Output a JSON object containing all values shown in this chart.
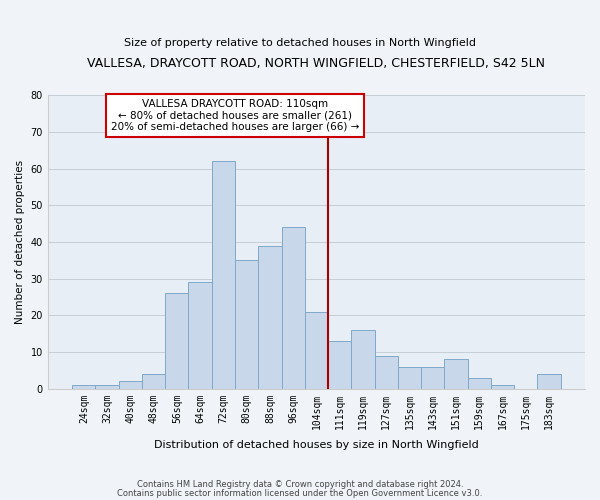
{
  "title": "VALLESA, DRAYCOTT ROAD, NORTH WINGFIELD, CHESTERFIELD, S42 5LN",
  "subtitle": "Size of property relative to detached houses in North Wingfield",
  "xlabel": "Distribution of detached houses by size in North Wingfield",
  "ylabel": "Number of detached properties",
  "bar_labels": [
    "24sqm",
    "32sqm",
    "40sqm",
    "48sqm",
    "56sqm",
    "64sqm",
    "72sqm",
    "80sqm",
    "88sqm",
    "96sqm",
    "104sqm",
    "111sqm",
    "119sqm",
    "127sqm",
    "135sqm",
    "143sqm",
    "151sqm",
    "159sqm",
    "167sqm",
    "175sqm",
    "183sqm"
  ],
  "bar_values": [
    1,
    1,
    2,
    4,
    26,
    29,
    62,
    35,
    39,
    44,
    21,
    13,
    16,
    9,
    6,
    6,
    8,
    3,
    1,
    0,
    4
  ],
  "bar_color": "#c8d8ea",
  "bar_edgecolor": "#7fa8c8",
  "vline_color": "#aa0000",
  "annotation_title": "VALLESA DRAYCOTT ROAD: 110sqm",
  "annotation_line1": "← 80% of detached houses are smaller (261)",
  "annotation_line2": "20% of semi-detached houses are larger (66) →",
  "ylim": [
    0,
    80
  ],
  "yticks": [
    0,
    10,
    20,
    30,
    40,
    50,
    60,
    70,
    80
  ],
  "footer1": "Contains HM Land Registry data © Crown copyright and database right 2024.",
  "footer2": "Contains public sector information licensed under the Open Government Licence v3.0.",
  "bg_color": "#f0f4f8",
  "plot_bg_color": "#e8eef5"
}
